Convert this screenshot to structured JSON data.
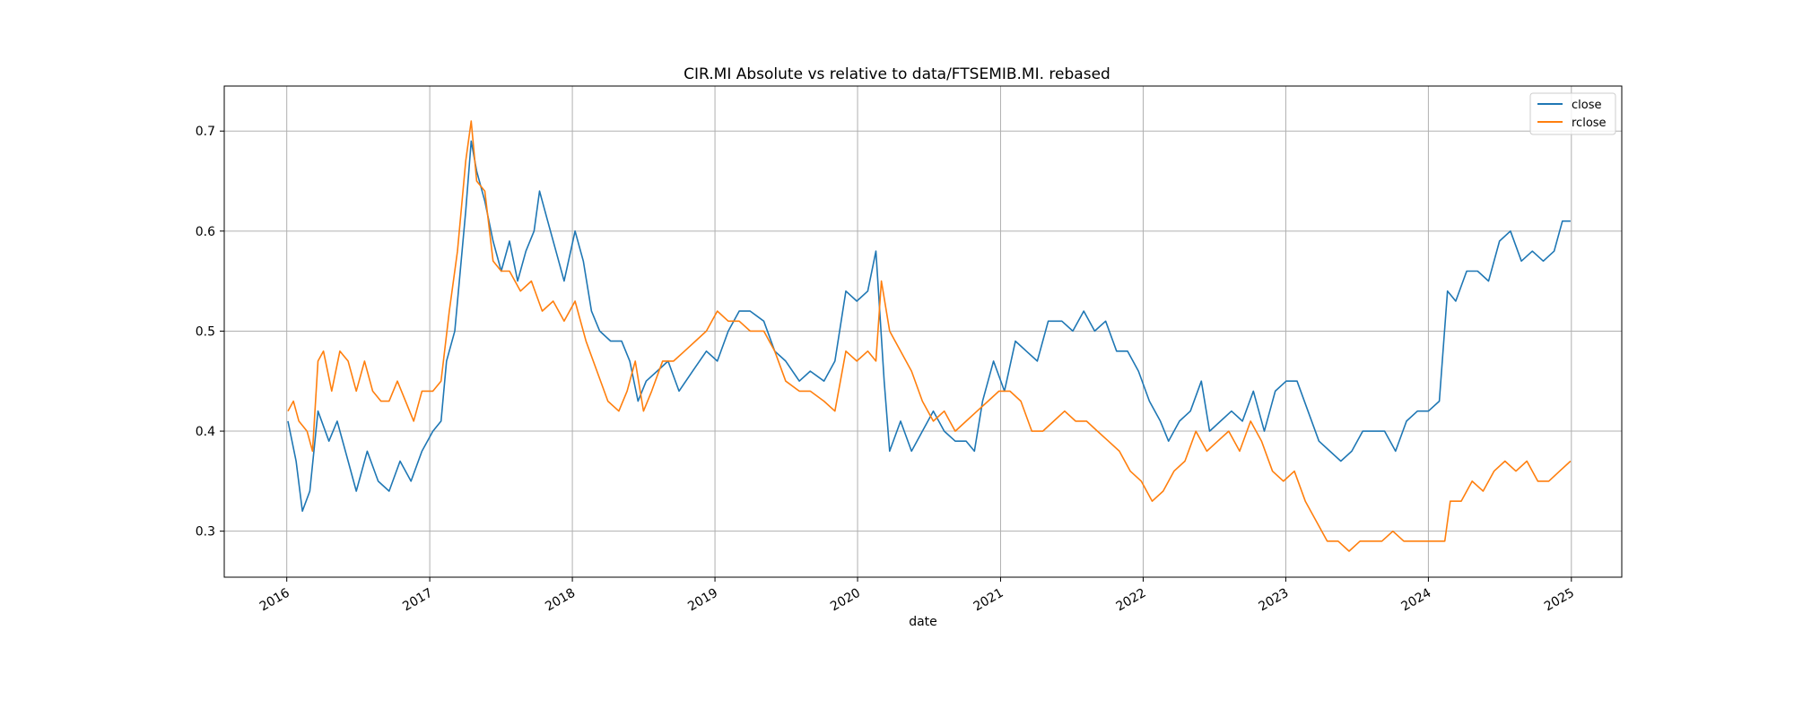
{
  "chart_data": {
    "type": "line",
    "title": "CIR.MI Absolute vs relative to data/FTSEMIB.MI. rebased",
    "xlabel": "date",
    "ylabel": "",
    "x_ticks": [
      "2016",
      "2017",
      "2018",
      "2019",
      "2020",
      "2021",
      "2022",
      "2023",
      "2024",
      "2025"
    ],
    "y_ticks": [
      "0.3",
      "0.4",
      "0.5",
      "0.6",
      "0.7"
    ],
    "xlim": [
      "2015-07-25",
      "2025-05-10"
    ],
    "ylim": [
      0.254,
      0.745
    ],
    "grid": true,
    "legend_position": "top-right",
    "colors": {
      "close": "#1f77b4",
      "rclose": "#ff7f0e",
      "grid": "#b0b0b0"
    },
    "series": [
      {
        "name": "close",
        "points": [
          [
            "2016-01-04",
            0.41
          ],
          [
            "2016-01-25",
            0.37
          ],
          [
            "2016-02-10",
            0.32
          ],
          [
            "2016-02-29",
            0.34
          ],
          [
            "2016-03-21",
            0.42
          ],
          [
            "2016-04-18",
            0.39
          ],
          [
            "2016-05-09",
            0.41
          ],
          [
            "2016-06-06",
            0.37
          ],
          [
            "2016-06-27",
            0.34
          ],
          [
            "2016-07-25",
            0.38
          ],
          [
            "2016-08-22",
            0.35
          ],
          [
            "2016-09-19",
            0.34
          ],
          [
            "2016-10-17",
            0.37
          ],
          [
            "2016-11-14",
            0.35
          ],
          [
            "2016-12-12",
            0.38
          ],
          [
            "2017-01-09",
            0.4
          ],
          [
            "2017-01-30",
            0.41
          ],
          [
            "2017-02-13",
            0.47
          ],
          [
            "2017-03-06",
            0.5
          ],
          [
            "2017-03-20",
            0.56
          ],
          [
            "2017-04-03",
            0.62
          ],
          [
            "2017-04-17",
            0.69
          ],
          [
            "2017-05-01",
            0.66
          ],
          [
            "2017-05-22",
            0.63
          ],
          [
            "2017-06-12",
            0.59
          ],
          [
            "2017-07-03",
            0.56
          ],
          [
            "2017-07-24",
            0.59
          ],
          [
            "2017-08-14",
            0.55
          ],
          [
            "2017-09-04",
            0.58
          ],
          [
            "2017-09-25",
            0.6
          ],
          [
            "2017-10-09",
            0.64
          ],
          [
            "2017-10-30",
            0.61
          ],
          [
            "2017-11-20",
            0.58
          ],
          [
            "2017-12-11",
            0.55
          ],
          [
            "2018-01-08",
            0.6
          ],
          [
            "2018-01-29",
            0.57
          ],
          [
            "2018-02-19",
            0.52
          ],
          [
            "2018-03-12",
            0.5
          ],
          [
            "2018-04-09",
            0.49
          ],
          [
            "2018-05-07",
            0.49
          ],
          [
            "2018-05-28",
            0.47
          ],
          [
            "2018-06-18",
            0.43
          ],
          [
            "2018-07-09",
            0.45
          ],
          [
            "2018-08-06",
            0.46
          ],
          [
            "2018-09-03",
            0.47
          ],
          [
            "2018-10-01",
            0.44
          ],
          [
            "2018-11-05",
            0.46
          ],
          [
            "2018-12-10",
            0.48
          ],
          [
            "2019-01-07",
            0.47
          ],
          [
            "2019-02-04",
            0.5
          ],
          [
            "2019-03-04",
            0.52
          ],
          [
            "2019-04-01",
            0.52
          ],
          [
            "2019-05-06",
            0.51
          ],
          [
            "2019-06-03",
            0.48
          ],
          [
            "2019-07-01",
            0.47
          ],
          [
            "2019-08-05",
            0.45
          ],
          [
            "2019-09-02",
            0.46
          ],
          [
            "2019-10-07",
            0.45
          ],
          [
            "2019-11-04",
            0.47
          ],
          [
            "2019-12-02",
            0.54
          ],
          [
            "2019-12-30",
            0.53
          ],
          [
            "2020-01-27",
            0.54
          ],
          [
            "2020-02-17",
            0.58
          ],
          [
            "2020-03-09",
            0.45
          ],
          [
            "2020-03-23",
            0.38
          ],
          [
            "2020-04-20",
            0.41
          ],
          [
            "2020-05-18",
            0.38
          ],
          [
            "2020-06-15",
            0.4
          ],
          [
            "2020-07-13",
            0.42
          ],
          [
            "2020-08-10",
            0.4
          ],
          [
            "2020-09-07",
            0.39
          ],
          [
            "2020-10-05",
            0.39
          ],
          [
            "2020-10-26",
            0.38
          ],
          [
            "2020-11-16",
            0.43
          ],
          [
            "2020-12-14",
            0.47
          ],
          [
            "2021-01-11",
            0.44
          ],
          [
            "2021-02-08",
            0.49
          ],
          [
            "2021-03-08",
            0.48
          ],
          [
            "2021-04-05",
            0.47
          ],
          [
            "2021-05-03",
            0.51
          ],
          [
            "2021-06-07",
            0.51
          ],
          [
            "2021-07-05",
            0.5
          ],
          [
            "2021-08-02",
            0.52
          ],
          [
            "2021-08-30",
            0.5
          ],
          [
            "2021-09-27",
            0.51
          ],
          [
            "2021-10-25",
            0.48
          ],
          [
            "2021-11-22",
            0.48
          ],
          [
            "2021-12-20",
            0.46
          ],
          [
            "2022-01-17",
            0.43
          ],
          [
            "2022-02-14",
            0.41
          ],
          [
            "2022-03-07",
            0.39
          ],
          [
            "2022-04-04",
            0.41
          ],
          [
            "2022-05-02",
            0.42
          ],
          [
            "2022-05-30",
            0.45
          ],
          [
            "2022-06-20",
            0.4
          ],
          [
            "2022-07-18",
            0.41
          ],
          [
            "2022-08-15",
            0.42
          ],
          [
            "2022-09-12",
            0.41
          ],
          [
            "2022-10-10",
            0.44
          ],
          [
            "2022-11-07",
            0.4
          ],
          [
            "2022-12-05",
            0.44
          ],
          [
            "2023-01-02",
            0.45
          ],
          [
            "2023-01-30",
            0.45
          ],
          [
            "2023-02-27",
            0.42
          ],
          [
            "2023-03-27",
            0.39
          ],
          [
            "2023-04-24",
            0.38
          ],
          [
            "2023-05-22",
            0.37
          ],
          [
            "2023-06-19",
            0.38
          ],
          [
            "2023-07-17",
            0.4
          ],
          [
            "2023-08-14",
            0.4
          ],
          [
            "2023-09-11",
            0.4
          ],
          [
            "2023-10-09",
            0.38
          ],
          [
            "2023-11-06",
            0.41
          ],
          [
            "2023-12-04",
            0.42
          ],
          [
            "2024-01-01",
            0.42
          ],
          [
            "2024-01-29",
            0.43
          ],
          [
            "2024-02-19",
            0.54
          ],
          [
            "2024-03-11",
            0.53
          ],
          [
            "2024-04-08",
            0.56
          ],
          [
            "2024-05-06",
            0.56
          ],
          [
            "2024-06-03",
            0.55
          ],
          [
            "2024-07-01",
            0.59
          ],
          [
            "2024-07-29",
            0.6
          ],
          [
            "2024-08-26",
            0.57
          ],
          [
            "2024-09-23",
            0.58
          ],
          [
            "2024-10-21",
            0.57
          ],
          [
            "2024-11-18",
            0.58
          ],
          [
            "2024-12-09",
            0.61
          ],
          [
            "2024-12-30",
            0.61
          ]
        ]
      },
      {
        "name": "rclose",
        "points": [
          [
            "2016-01-04",
            0.42
          ],
          [
            "2016-01-18",
            0.43
          ],
          [
            "2016-02-01",
            0.41
          ],
          [
            "2016-02-22",
            0.4
          ],
          [
            "2016-03-07",
            0.38
          ],
          [
            "2016-03-21",
            0.47
          ],
          [
            "2016-04-04",
            0.48
          ],
          [
            "2016-04-25",
            0.44
          ],
          [
            "2016-05-16",
            0.48
          ],
          [
            "2016-06-06",
            0.47
          ],
          [
            "2016-06-27",
            0.44
          ],
          [
            "2016-07-18",
            0.47
          ],
          [
            "2016-08-08",
            0.44
          ],
          [
            "2016-08-29",
            0.43
          ],
          [
            "2016-09-19",
            0.43
          ],
          [
            "2016-10-10",
            0.45
          ],
          [
            "2016-10-31",
            0.43
          ],
          [
            "2016-11-21",
            0.41
          ],
          [
            "2016-12-12",
            0.44
          ],
          [
            "2017-01-09",
            0.44
          ],
          [
            "2017-01-30",
            0.45
          ],
          [
            "2017-02-20",
            0.52
          ],
          [
            "2017-03-13",
            0.58
          ],
          [
            "2017-04-03",
            0.67
          ],
          [
            "2017-04-17",
            0.71
          ],
          [
            "2017-05-01",
            0.65
          ],
          [
            "2017-05-22",
            0.64
          ],
          [
            "2017-06-12",
            0.57
          ],
          [
            "2017-07-03",
            0.56
          ],
          [
            "2017-07-24",
            0.56
          ],
          [
            "2017-08-21",
            0.54
          ],
          [
            "2017-09-18",
            0.55
          ],
          [
            "2017-10-16",
            0.52
          ],
          [
            "2017-11-13",
            0.53
          ],
          [
            "2017-12-11",
            0.51
          ],
          [
            "2018-01-08",
            0.53
          ],
          [
            "2018-02-05",
            0.49
          ],
          [
            "2018-03-05",
            0.46
          ],
          [
            "2018-04-02",
            0.43
          ],
          [
            "2018-04-30",
            0.42
          ],
          [
            "2018-05-21",
            0.44
          ],
          [
            "2018-06-11",
            0.47
          ],
          [
            "2018-07-02",
            0.42
          ],
          [
            "2018-07-23",
            0.44
          ],
          [
            "2018-08-20",
            0.47
          ],
          [
            "2018-09-17",
            0.47
          ],
          [
            "2018-10-15",
            0.48
          ],
          [
            "2018-11-12",
            0.49
          ],
          [
            "2018-12-10",
            0.5
          ],
          [
            "2019-01-07",
            0.52
          ],
          [
            "2019-02-04",
            0.51
          ],
          [
            "2019-03-04",
            0.51
          ],
          [
            "2019-04-01",
            0.5
          ],
          [
            "2019-05-06",
            0.5
          ],
          [
            "2019-06-03",
            0.48
          ],
          [
            "2019-07-01",
            0.45
          ],
          [
            "2019-08-05",
            0.44
          ],
          [
            "2019-09-02",
            0.44
          ],
          [
            "2019-10-07",
            0.43
          ],
          [
            "2019-11-04",
            0.42
          ],
          [
            "2019-12-02",
            0.48
          ],
          [
            "2019-12-30",
            0.47
          ],
          [
            "2020-01-27",
            0.48
          ],
          [
            "2020-02-17",
            0.47
          ],
          [
            "2020-03-02",
            0.55
          ],
          [
            "2020-03-23",
            0.5
          ],
          [
            "2020-04-20",
            0.48
          ],
          [
            "2020-05-18",
            0.46
          ],
          [
            "2020-06-15",
            0.43
          ],
          [
            "2020-07-13",
            0.41
          ],
          [
            "2020-08-10",
            0.42
          ],
          [
            "2020-09-07",
            0.4
          ],
          [
            "2020-10-05",
            0.41
          ],
          [
            "2020-11-02",
            0.42
          ],
          [
            "2020-11-30",
            0.43
          ],
          [
            "2020-12-28",
            0.44
          ],
          [
            "2021-01-25",
            0.44
          ],
          [
            "2021-02-22",
            0.43
          ],
          [
            "2021-03-22",
            0.4
          ],
          [
            "2021-04-19",
            0.4
          ],
          [
            "2021-05-17",
            0.41
          ],
          [
            "2021-06-14",
            0.42
          ],
          [
            "2021-07-12",
            0.41
          ],
          [
            "2021-08-09",
            0.41
          ],
          [
            "2021-09-06",
            0.4
          ],
          [
            "2021-10-04",
            0.39
          ],
          [
            "2021-11-01",
            0.38
          ],
          [
            "2021-11-29",
            0.36
          ],
          [
            "2021-12-27",
            0.35
          ],
          [
            "2022-01-24",
            0.33
          ],
          [
            "2022-02-21",
            0.34
          ],
          [
            "2022-03-21",
            0.36
          ],
          [
            "2022-04-18",
            0.37
          ],
          [
            "2022-05-16",
            0.4
          ],
          [
            "2022-06-13",
            0.38
          ],
          [
            "2022-07-11",
            0.39
          ],
          [
            "2022-08-08",
            0.4
          ],
          [
            "2022-09-05",
            0.38
          ],
          [
            "2022-10-03",
            0.41
          ],
          [
            "2022-10-31",
            0.39
          ],
          [
            "2022-11-28",
            0.36
          ],
          [
            "2022-12-26",
            0.35
          ],
          [
            "2023-01-23",
            0.36
          ],
          [
            "2023-02-20",
            0.33
          ],
          [
            "2023-03-20",
            0.31
          ],
          [
            "2023-04-17",
            0.29
          ],
          [
            "2023-05-15",
            0.29
          ],
          [
            "2023-06-12",
            0.28
          ],
          [
            "2023-07-10",
            0.29
          ],
          [
            "2023-08-07",
            0.29
          ],
          [
            "2023-09-04",
            0.29
          ],
          [
            "2023-10-02",
            0.3
          ],
          [
            "2023-10-30",
            0.29
          ],
          [
            "2023-11-27",
            0.29
          ],
          [
            "2023-12-25",
            0.29
          ],
          [
            "2024-01-22",
            0.29
          ],
          [
            "2024-02-12",
            0.29
          ],
          [
            "2024-02-26",
            0.33
          ],
          [
            "2024-03-25",
            0.33
          ],
          [
            "2024-04-22",
            0.35
          ],
          [
            "2024-05-20",
            0.34
          ],
          [
            "2024-06-17",
            0.36
          ],
          [
            "2024-07-15",
            0.37
          ],
          [
            "2024-08-12",
            0.36
          ],
          [
            "2024-09-09",
            0.37
          ],
          [
            "2024-10-07",
            0.35
          ],
          [
            "2024-11-04",
            0.35
          ],
          [
            "2024-12-02",
            0.36
          ],
          [
            "2024-12-30",
            0.37
          ]
        ]
      }
    ]
  }
}
